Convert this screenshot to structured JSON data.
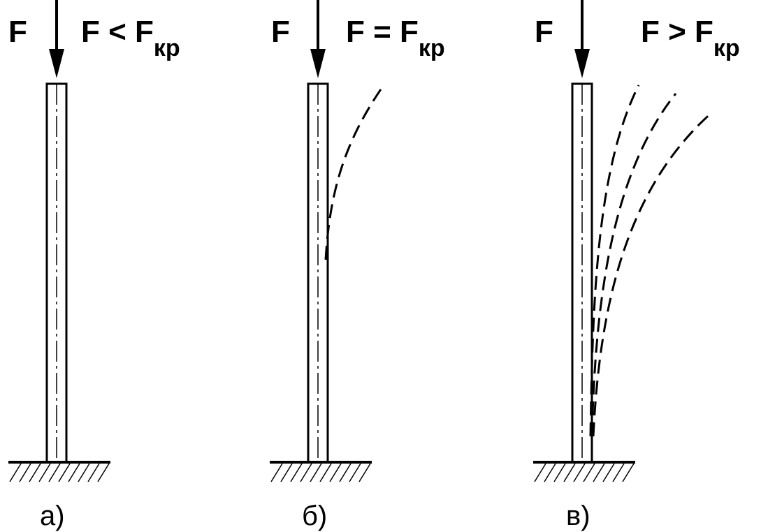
{
  "panels": [
    {
      "id": "a",
      "load_symbol": "F",
      "relation_main": "F < F",
      "relation_sub": "кр",
      "caption": "а)",
      "deflected_curves": 0
    },
    {
      "id": "b",
      "load_symbol": "F",
      "relation_main": "F = F",
      "relation_sub": "кр",
      "caption": "б)",
      "deflected_curves": 1
    },
    {
      "id": "v",
      "load_symbol": "F",
      "relation_main": "F > F",
      "relation_sub": "кр",
      "caption": "в)",
      "deflected_curves": 3
    }
  ],
  "colors": {
    "line": "#000000",
    "background": "#ffffff"
  }
}
